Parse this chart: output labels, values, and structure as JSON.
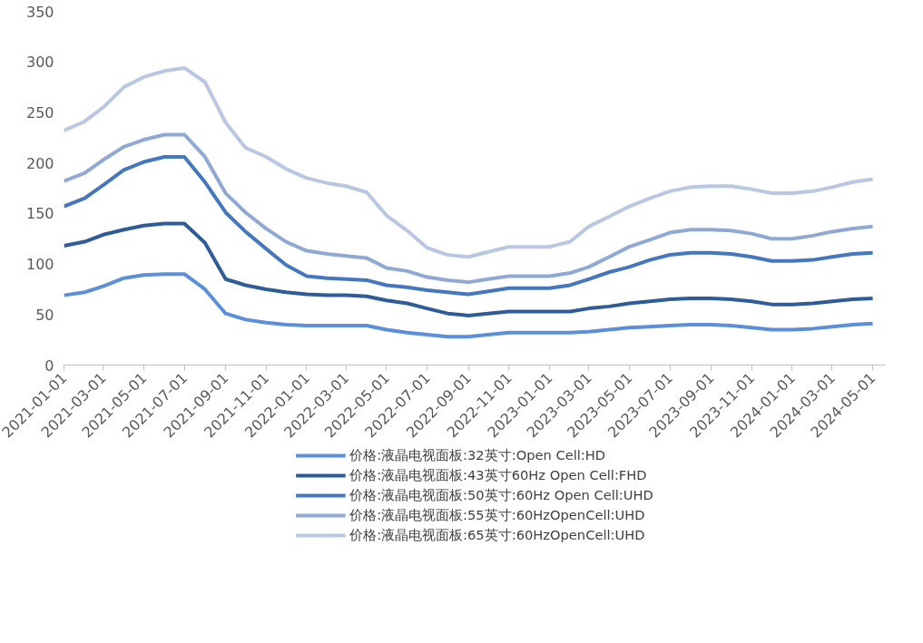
{
  "chart_data": {
    "type": "line",
    "x": [
      "2021-01-01",
      "2021-02-01",
      "2021-03-01",
      "2021-04-01",
      "2021-05-01",
      "2021-06-01",
      "2021-07-01",
      "2021-08-01",
      "2021-09-01",
      "2021-10-01",
      "2021-11-01",
      "2021-12-01",
      "2022-01-01",
      "2022-02-01",
      "2022-03-01",
      "2022-04-01",
      "2022-05-01",
      "2022-06-01",
      "2022-07-01",
      "2022-08-01",
      "2022-09-01",
      "2022-10-01",
      "2022-11-01",
      "2022-12-01",
      "2023-01-01",
      "2023-02-01",
      "2023-03-01",
      "2023-04-01",
      "2023-05-01",
      "2023-06-01",
      "2023-07-01",
      "2023-08-01",
      "2023-09-01",
      "2023-10-01",
      "2023-11-01",
      "2023-12-01",
      "2024-01-01",
      "2024-02-01",
      "2024-03-01",
      "2024-04-01",
      "2024-05-01"
    ],
    "series": [
      {
        "name": "价格:液晶电视面板:32英寸:Open Cell:HD",
        "color": "#5b8fd9",
        "values": [
          69,
          72,
          78,
          86,
          89,
          90,
          90,
          75,
          51,
          45,
          42,
          40,
          39,
          39,
          39,
          39,
          35,
          32,
          30,
          28,
          28,
          30,
          32,
          32,
          32,
          32,
          33,
          35,
          37,
          38,
          39,
          40,
          40,
          39,
          37,
          35,
          35,
          36,
          38,
          40,
          41
        ]
      },
      {
        "name": "价格:液晶电视面板:43英寸60Hz Open Cell:FHD",
        "color": "#2e5c98",
        "values": [
          118,
          122,
          129,
          134,
          138,
          140,
          140,
          121,
          85,
          79,
          75,
          72,
          70,
          69,
          69,
          68,
          64,
          61,
          56,
          51,
          49,
          51,
          53,
          53,
          53,
          53,
          56,
          58,
          61,
          63,
          65,
          66,
          66,
          65,
          63,
          60,
          60,
          61,
          63,
          65,
          66
        ]
      },
      {
        "name": "价格:液晶电视面板:50英寸:60Hz Open Cell:UHD",
        "color": "#4477bf",
        "values": [
          157,
          165,
          178,
          193,
          201,
          206,
          206,
          181,
          151,
          132,
          115,
          99,
          88,
          86,
          85,
          84,
          79,
          77,
          74,
          72,
          70,
          73,
          76,
          76,
          76,
          79,
          85,
          92,
          97,
          104,
          109,
          111,
          111,
          110,
          107,
          103,
          103,
          104,
          107,
          110,
          111
        ]
      },
      {
        "name": "价格:液晶电视面板:55英寸:60HzOpenCell:UHD",
        "color": "#8fa8d4",
        "values": [
          182,
          190,
          203,
          216,
          223,
          228,
          228,
          206,
          170,
          151,
          135,
          122,
          113,
          110,
          108,
          106,
          96,
          93,
          87,
          84,
          82,
          85,
          88,
          88,
          88,
          91,
          97,
          107,
          117,
          124,
          131,
          134,
          134,
          133,
          130,
          125,
          125,
          128,
          132,
          135,
          137
        ]
      },
      {
        "name": "价格:液晶电视面板:65英寸:60HzOpenCell:UHD",
        "color": "#b9c7e3",
        "values": [
          232,
          241,
          255,
          275,
          285,
          291,
          294,
          280,
          240,
          215,
          206,
          194,
          185,
          180,
          177,
          171,
          148,
          133,
          116,
          109,
          107,
          112,
          117,
          117,
          117,
          122,
          137,
          147,
          157,
          165,
          172,
          176,
          177,
          177,
          174,
          170,
          170,
          172,
          176,
          181,
          184
        ]
      }
    ],
    "xlim": [
      "2021-01-01",
      "2024-05-20"
    ],
    "xticks": [
      "2021-01-01",
      "2021-03-01",
      "2021-05-01",
      "2021-07-01",
      "2021-09-01",
      "2021-11-01",
      "2022-01-01",
      "2022-03-01",
      "2022-05-01",
      "2022-07-01",
      "2022-09-01",
      "2022-11-01",
      "2023-01-01",
      "2023-03-01",
      "2023-05-01",
      "2023-07-01",
      "2023-09-01",
      "2023-11-01",
      "2024-01-01",
      "2024-03-01",
      "2024-05-01"
    ],
    "ylim": [
      0,
      350
    ],
    "yticks": [
      0,
      50,
      100,
      150,
      200,
      250,
      300,
      350
    ],
    "grid": false,
    "legend": "bottom",
    "marker": "none",
    "line_style": "solid"
  }
}
